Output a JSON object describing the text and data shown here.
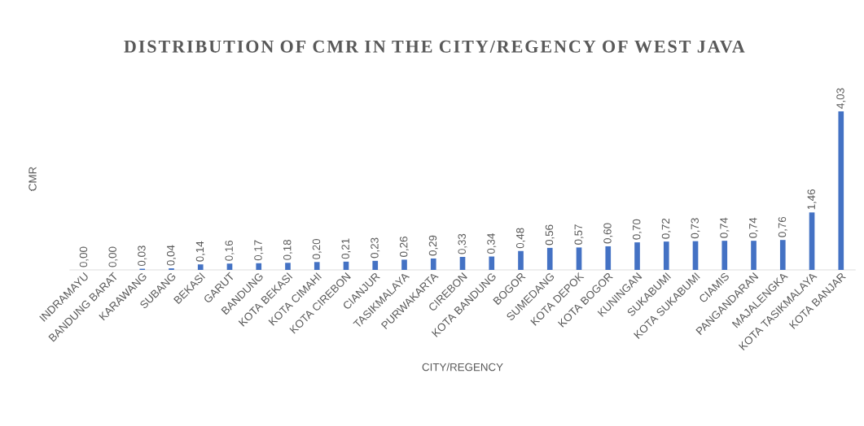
{
  "chart_data": {
    "type": "bar",
    "title": "DISTRIBUTION OF CMR IN THE CITY/REGENCY OF WEST JAVA",
    "xlabel": "CITY/REGENCY",
    "ylabel": "CMR",
    "categories": [
      "INDRAMAYU",
      "BANDUNG BARAT",
      "KARAWANG",
      "SUBANG",
      "BEKASI",
      "GARUT",
      "BANDUNG",
      "KOTA BEKASI",
      "KOTA CIMAHI",
      "KOTA CIREBON",
      "CIANJUR",
      "TASIKMALAYA",
      "PURWAKARTA",
      "CIREBON",
      "KOTA BANDUNG",
      "BOGOR",
      "SUMEDANG",
      "KOTA DEPOK",
      "KOTA BOGOR",
      "KUNINGAN",
      "SUKABUMI",
      "KOTA SUKABUMI",
      "CIAMIS",
      "PANGANDARAN",
      "MAJALENGKA",
      "KOTA TASIKMALAYA",
      "KOTA BANJAR"
    ],
    "values": [
      0.0,
      0.0,
      0.03,
      0.04,
      0.14,
      0.16,
      0.17,
      0.18,
      0.2,
      0.21,
      0.23,
      0.26,
      0.29,
      0.33,
      0.34,
      0.48,
      0.56,
      0.57,
      0.6,
      0.7,
      0.72,
      0.73,
      0.74,
      0.74,
      0.76,
      1.46,
      4.03
    ],
    "value_labels": [
      "0,00",
      "0,00",
      "0,03",
      "0,04",
      "0,14",
      "0,16",
      "0,17",
      "0,18",
      "0,20",
      "0,21",
      "0,23",
      "0,26",
      "0,29",
      "0,33",
      "0,34",
      "0,48",
      "0,56",
      "0,57",
      "0,60",
      "0,70",
      "0,72",
      "0,73",
      "0,74",
      "0,74",
      "0,76",
      "1,46",
      "4,03"
    ],
    "color": "#4472c4"
  }
}
